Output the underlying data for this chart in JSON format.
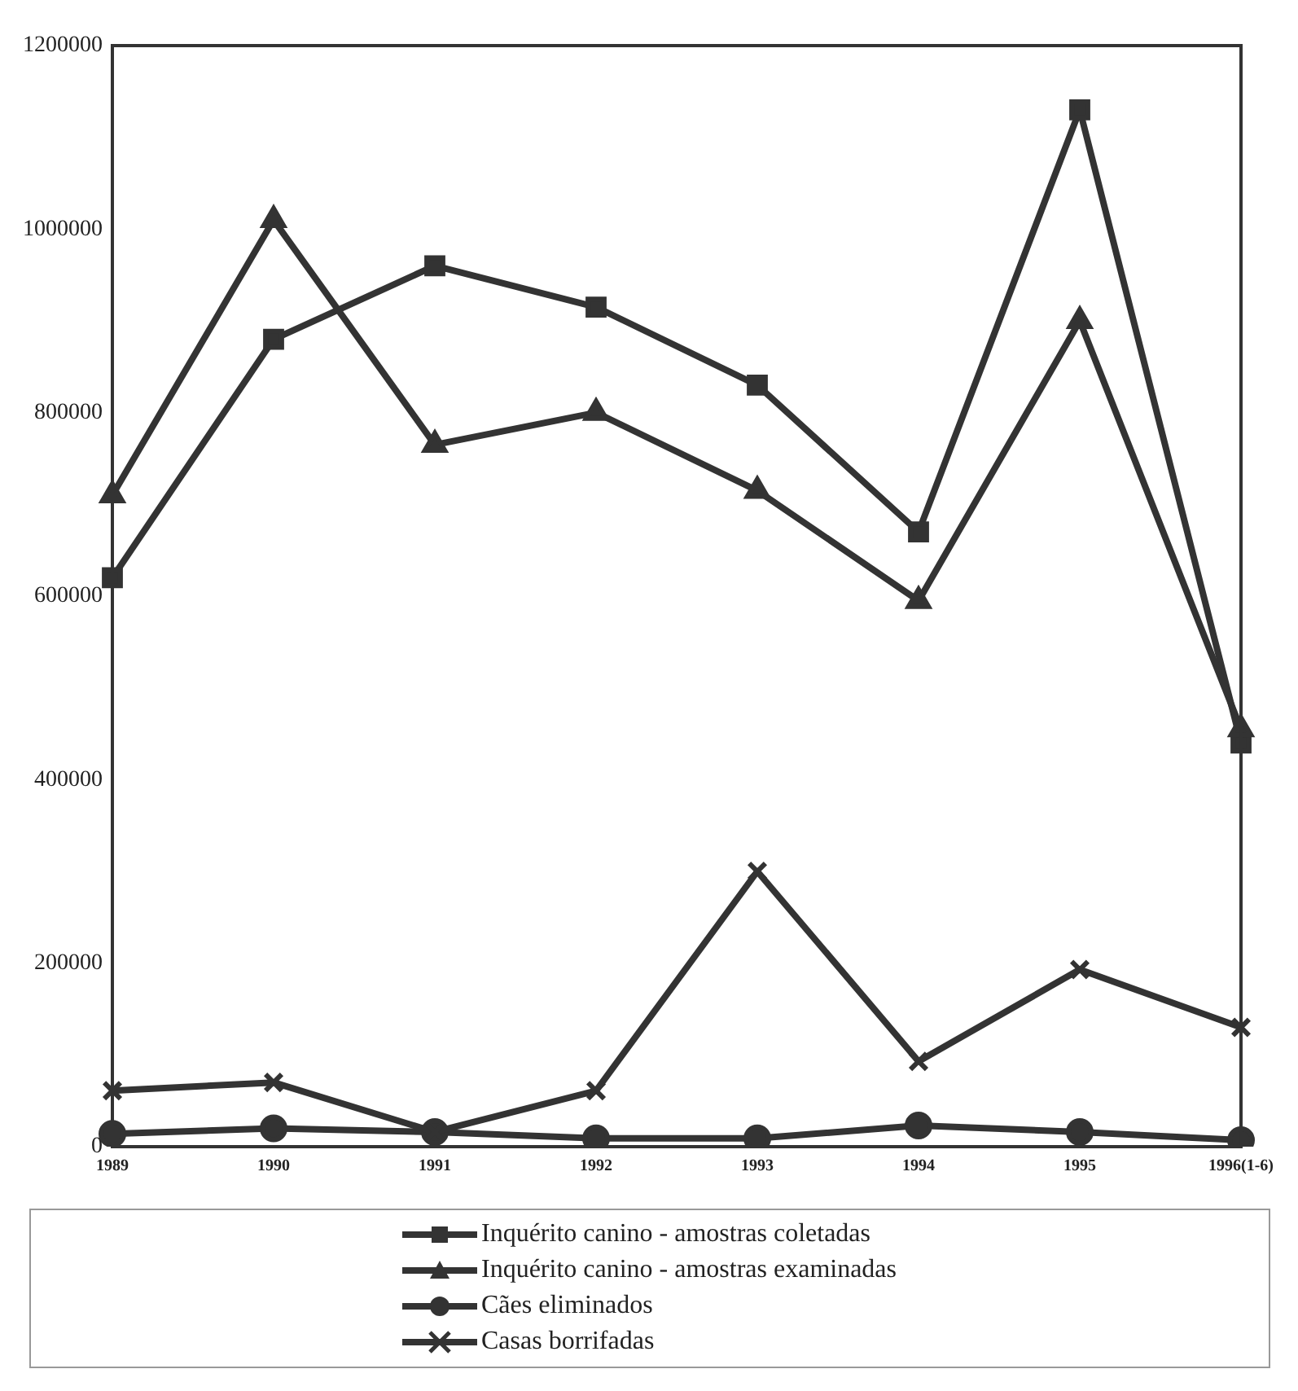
{
  "chart_data": {
    "type": "line",
    "categories": [
      "1989",
      "1990",
      "1991",
      "1992",
      "1993",
      "1994",
      "1995",
      "1996(1-6)"
    ],
    "series": [
      {
        "name": "Inquérito canino - amostras coletadas",
        "color": "#333333",
        "marker": "square",
        "values": [
          620000,
          880000,
          960000,
          915000,
          830000,
          670000,
          1130000,
          440000
        ]
      },
      {
        "name": "Inquérito canino - amostras examinadas",
        "color": "#333333",
        "marker": "triangle",
        "values": [
          710000,
          1010000,
          765000,
          800000,
          715000,
          595000,
          900000,
          455000
        ]
      },
      {
        "name": "Cães eliminados",
        "color": "#333333",
        "marker": "circle",
        "values": [
          14000,
          20000,
          16000,
          9000,
          9000,
          23000,
          16000,
          7000
        ]
      },
      {
        "name": "Casas borrifadas",
        "color": "#333333",
        "marker": "cross",
        "values": [
          61000,
          70000,
          16000,
          61000,
          300000,
          93000,
          193000,
          130000
        ]
      }
    ],
    "ylim": [
      0,
      1200000
    ],
    "yticks": [
      0,
      200000,
      400000,
      600000,
      800000,
      1000000,
      1200000
    ],
    "grid": false,
    "legend": "bottom",
    "line_style": "solid"
  }
}
